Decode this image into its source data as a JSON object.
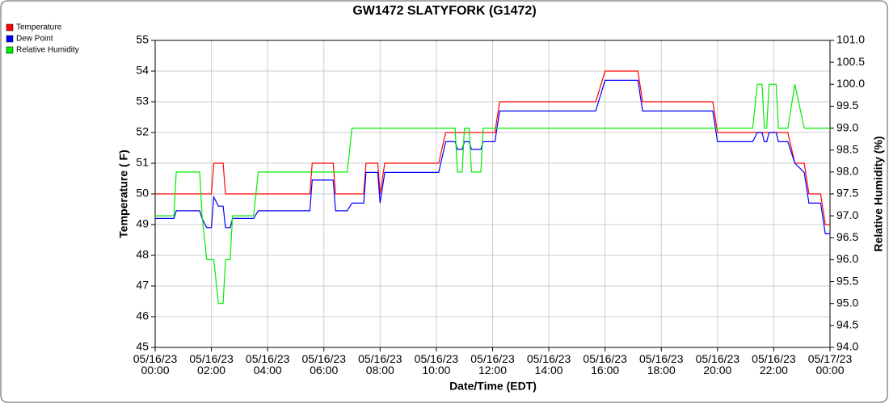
{
  "chart_data": {
    "type": "line",
    "title": "GW1472 SLATYFORK (G1472)",
    "x_label": "Date/Time (EDT)",
    "y_label": "Temperature ( F)",
    "y2_label": "Relative Humidity (%)",
    "legend": "top-left",
    "grid": true,
    "x": [
      "05/16/23 00:00",
      "05/16/23 00:40",
      "05/16/23 00:45",
      "05/16/23 01:35",
      "05/16/23 01:40",
      "05/16/23 01:50",
      "05/16/23 02:00",
      "05/16/23 02:05",
      "05/16/23 02:15",
      "05/16/23 02:25",
      "05/16/23 02:30",
      "05/16/23 02:40",
      "05/16/23 02:45",
      "05/16/23 03:30",
      "05/16/23 03:40",
      "05/16/23 05:30",
      "05/16/23 05:35",
      "05/16/23 06:20",
      "05/16/23 06:25",
      "05/16/23 06:50",
      "05/16/23 07:00",
      "05/16/23 07:25",
      "05/16/23 07:30",
      "05/16/23 07:55",
      "05/16/23 08:00",
      "05/16/23 08:10",
      "05/16/23 10:05",
      "05/16/23 10:20",
      "05/16/23 10:40",
      "05/16/23 10:45",
      "05/16/23 10:55",
      "05/16/23 11:00",
      "05/16/23 11:10",
      "05/16/23 11:15",
      "05/16/23 11:35",
      "05/16/23 11:40",
      "05/16/23 12:05",
      "05/16/23 12:15",
      "05/16/23 15:40",
      "05/16/23 16:00",
      "05/16/23 17:10",
      "05/16/23 17:20",
      "05/16/23 19:50",
      "05/16/23 20:00",
      "05/16/23 21:15",
      "05/16/23 21:25",
      "05/16/23 21:35",
      "05/16/23 21:40",
      "05/16/23 21:45",
      "05/16/23 21:50",
      "05/16/23 22:05",
      "05/16/23 22:10",
      "05/16/23 22:30",
      "05/16/23 22:45",
      "05/16/23 23:05",
      "05/16/23 23:15",
      "05/16/23 23:40",
      "05/16/23 23:50",
      "05/17/23 00:00"
    ],
    "series": [
      {
        "name": "Temperature",
        "color": "#ff0000",
        "axis": "y",
        "values": [
          50,
          50,
          50,
          50,
          50,
          50,
          50,
          51,
          51,
          51,
          50,
          50,
          50,
          50,
          50,
          50,
          51,
          51,
          50,
          50,
          50,
          50,
          51,
          51,
          50,
          51,
          51,
          52,
          52,
          52,
          52,
          52,
          52,
          52,
          52,
          52,
          52,
          53,
          53,
          54,
          54,
          53,
          53,
          52,
          52,
          52,
          52,
          52,
          52,
          52,
          52,
          52,
          52,
          51,
          51,
          50,
          50,
          49,
          49
        ]
      },
      {
        "name": "Dew Point",
        "color": "#0000ff",
        "axis": "y",
        "values": [
          49.2,
          49.2,
          49.45,
          49.45,
          49.2,
          48.9,
          48.9,
          49.9,
          49.6,
          49.6,
          48.9,
          48.9,
          49.2,
          49.2,
          49.45,
          49.45,
          50.45,
          50.45,
          49.45,
          49.45,
          49.7,
          49.7,
          50.7,
          50.7,
          49.7,
          50.7,
          50.7,
          51.7,
          51.7,
          51.45,
          51.45,
          51.7,
          51.7,
          51.45,
          51.45,
          51.7,
          51.7,
          52.7,
          52.7,
          53.7,
          53.7,
          52.7,
          52.7,
          51.7,
          51.7,
          52,
          52,
          51.7,
          51.7,
          52,
          52,
          51.7,
          51.7,
          51,
          50.7,
          49.7,
          49.7,
          48.7,
          48.7
        ]
      },
      {
        "name": "Relative Humidity",
        "color": "#00ee00",
        "axis": "y2",
        "values": [
          97,
          97,
          98,
          98,
          97,
          96,
          96,
          96,
          95,
          95,
          96,
          96,
          97,
          97,
          98,
          98,
          98,
          98,
          98,
          98,
          99,
          99,
          99,
          99,
          99,
          99,
          99,
          99,
          99,
          98,
          98,
          99,
          99,
          98,
          98,
          99,
          99,
          99,
          99,
          99,
          99,
          99,
          99,
          99,
          99,
          100,
          100,
          99,
          99,
          100,
          100,
          99,
          99,
          100,
          99,
          99,
          99,
          99,
          99
        ]
      }
    ],
    "xlim": [
      "05/16/23 00:00",
      "05/17/23 00:00"
    ],
    "xticks": [
      "05/16/23 00:00",
      "05/16/23 02:00",
      "05/16/23 04:00",
      "05/16/23 06:00",
      "05/16/23 08:00",
      "05/16/23 10:00",
      "05/16/23 12:00",
      "05/16/23 14:00",
      "05/16/23 16:00",
      "05/16/23 18:00",
      "05/16/23 20:00",
      "05/16/23 22:00",
      "05/17/23 00:00"
    ],
    "ylim": [
      45,
      55
    ],
    "yticks": [
      45,
      46,
      47,
      48,
      49,
      50,
      51,
      52,
      53,
      54,
      55
    ],
    "y2lim": [
      94,
      101
    ],
    "y2ticks": [
      {
        "value": 94,
        "label": "94.0"
      },
      94.5,
      {
        "value": 95,
        "label": "95.0"
      },
      95.5,
      {
        "value": 96,
        "label": "96.0"
      },
      96.5,
      {
        "value": 97,
        "label": "97.0"
      },
      97.5,
      {
        "value": 98,
        "label": "98.0"
      },
      98.5,
      {
        "value": 99,
        "label": "99.0"
      },
      99.5,
      {
        "value": 100,
        "label": "100.0"
      },
      100.5,
      {
        "value": 101,
        "label": "101.0"
      }
    ]
  }
}
